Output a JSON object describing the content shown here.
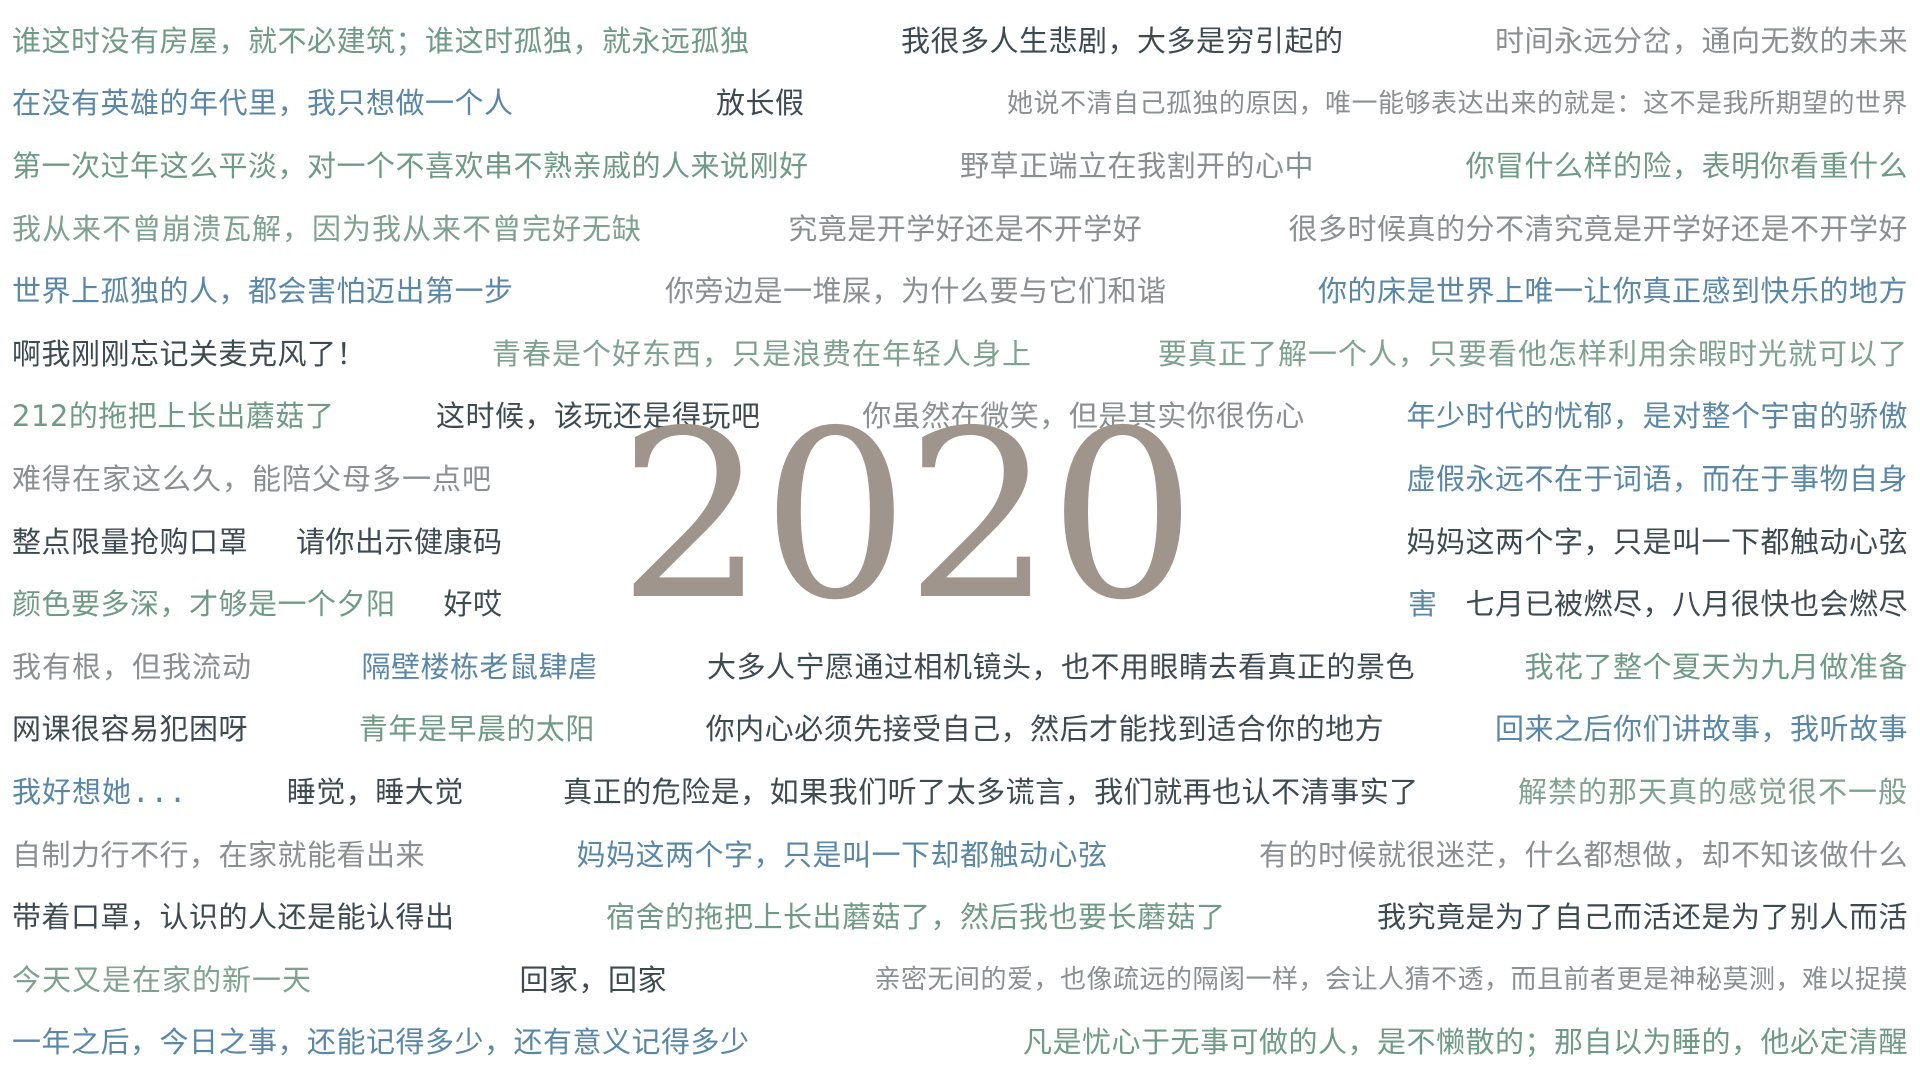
{
  "year": "2020",
  "rows": [
    [
      "谁这时没有房屋，就不必建筑；谁这时孤独，就永远孤独",
      "我很多人生悲剧，大多是穷引起的",
      "时间永远分岔，通向无数的未来"
    ],
    [
      "在没有英雄的年代里，我只想做一个人",
      "放长假",
      "她说不清自己孤独的原因，唯一能够表达出来的就是：这不是我所期望的世界"
    ],
    [
      "第一次过年这么平淡，对一个不喜欢串不熟亲戚的人来说刚好",
      "野草正端立在我割开的心中",
      "你冒什么样的险，表明你看重什么"
    ],
    [
      "我从来不曾崩溃瓦解，因为我从来不曾完好无缺",
      "究竟是开学好还是不开学好",
      "很多时候真的分不清究竟是开学好还是不开学好"
    ],
    [
      "世界上孤独的人，都会害怕迈出第一步",
      "你旁边是一堆屎，为什么要与它们和谐",
      "你的床是世界上唯一让你真正感到快乐的地方"
    ],
    [
      "啊我刚刚忘记关麦克风了！",
      "青春是个好东西，只是浪费在年轻人身上",
      "要真正了解一个人，只要看他怎样利用余暇时光就可以了"
    ],
    [
      "212的拖把上长出蘑菇了",
      "这时候，该玩还是得玩吧",
      "你虽然在微笑，但是其实你很伤心",
      "年少时代的忧郁，是对整个宇宙的骄傲"
    ],
    [
      "难得在家这么久，能陪父母多一点吧",
      "虚假永远不在于词语，而在于事物自身"
    ],
    [
      "整点限量抢购口罩",
      "请你出示健康码",
      "妈妈这两个字，只是叫一下都触动心弦"
    ],
    [
      "颜色要多深，才够是一个夕阳",
      "好哎",
      "害",
      "七月已被燃尽，八月很快也会燃尽"
    ],
    [
      "我有根，但我流动",
      "隔壁楼栋老鼠肆虐",
      "大多人宁愿通过相机镜头，也不用眼睛去看真正的景色",
      "我花了整个夏天为九月做准备"
    ],
    [
      "网课很容易犯困呀",
      "青年是早晨的太阳",
      "你内心必须先接受自己，然后才能找到适合你的地方",
      "回来之后你们讲故事，我听故事"
    ],
    [
      "我好想她...",
      "睡觉，睡大觉",
      "真正的危险是，如果我们听了太多谎言，我们就再也认不清事实了",
      "解禁的那天真的感觉很不一般"
    ],
    [
      "自制力行不行，在家就能看出来",
      "妈妈这两个字，只是叫一下却都触动心弦",
      "有的时候就很迷茫，什么都想做，却不知该做什么"
    ],
    [
      "带着口罩，认识的人还是能认得出",
      "宿舍的拖把上长出蘑菇了，然后我也要长蘑菇了",
      "我究竟是为了自己而活还是为了别人而活"
    ],
    [
      "今天又是在家的新一天",
      "回家，回家",
      "亲密无间的爱，也像疏远的隔阂一样，会让人猜不透，而且前者更是神秘莫测，难以捉摸"
    ],
    [
      "一年之后，今日之事，还能记得多少，还有意义记得多少",
      "凡是忧心于无事可做的人，是不懒散的；那自以为睡的，他必定清醒"
    ]
  ]
}
